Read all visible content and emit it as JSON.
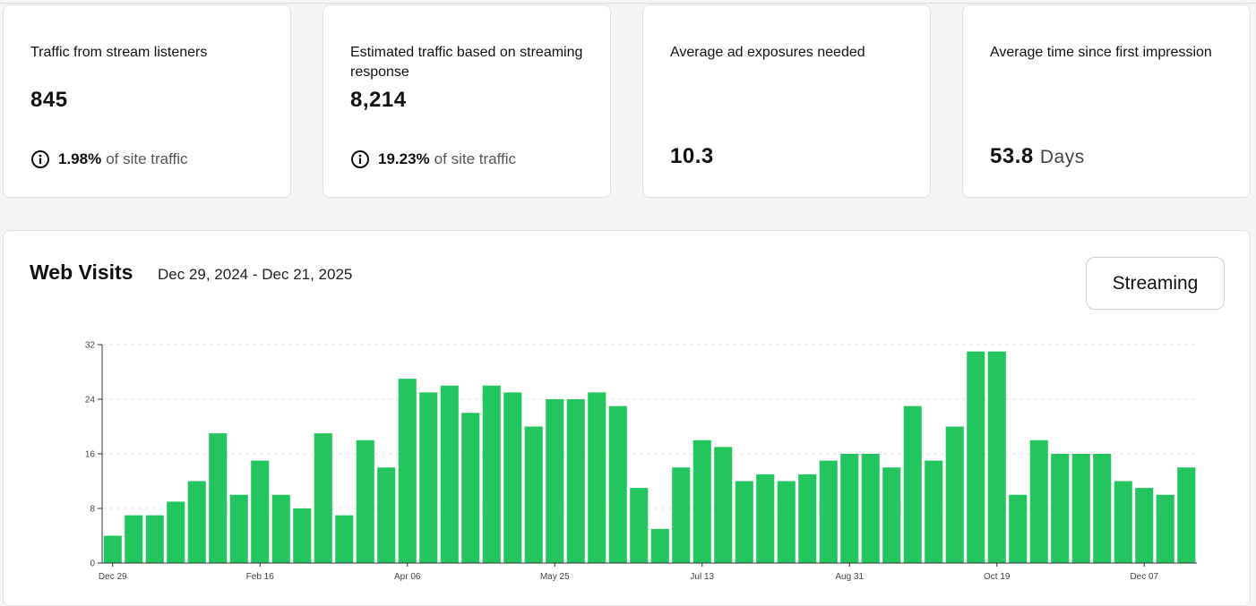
{
  "cards": [
    {
      "title": "Traffic from stream listeners",
      "value": "845",
      "foot_pct": "1.98%",
      "foot_text": "of site traffic"
    },
    {
      "title": "Estimated traffic based on streaming response",
      "value": "8,214",
      "foot_pct": "19.23%",
      "foot_text": "of site traffic"
    },
    {
      "title": "Average ad exposures needed",
      "value": "10.3"
    },
    {
      "title": "Average time since first impression",
      "value": "53.8",
      "unit": "Days"
    }
  ],
  "panel": {
    "title": "Web Visits",
    "range": "Dec 29, 2024 - Dec 21, 2025",
    "button_label": "Streaming"
  },
  "colors": {
    "bar": "#22c55e",
    "grid": "#e5e5e5",
    "axis": "#333333"
  },
  "chart_data": {
    "type": "bar",
    "title": "",
    "xlabel": "",
    "ylabel": "",
    "ylim": [
      0,
      32
    ],
    "yticks": [
      0,
      8,
      16,
      24,
      32
    ],
    "xtick_labels": [
      {
        "index": 0,
        "label": "Dec 29"
      },
      {
        "index": 7,
        "label": "Feb 16"
      },
      {
        "index": 14,
        "label": "Apr 06"
      },
      {
        "index": 21,
        "label": "May 25"
      },
      {
        "index": 28,
        "label": "Jul 13"
      },
      {
        "index": 35,
        "label": "Aug 31"
      },
      {
        "index": 42,
        "label": "Oct 19"
      },
      {
        "index": 49,
        "label": "Dec 07"
      }
    ],
    "values": [
      4,
      7,
      7,
      9,
      12,
      19,
      10,
      15,
      10,
      8,
      19,
      7,
      18,
      14,
      27,
      25,
      26,
      22,
      26,
      25,
      20,
      24,
      24,
      25,
      23,
      11,
      5,
      14,
      18,
      17,
      12,
      13,
      12,
      13,
      15,
      16,
      16,
      14,
      23,
      15,
      20,
      31,
      31,
      10,
      18,
      16,
      16,
      16,
      12,
      11,
      10,
      14
    ]
  }
}
